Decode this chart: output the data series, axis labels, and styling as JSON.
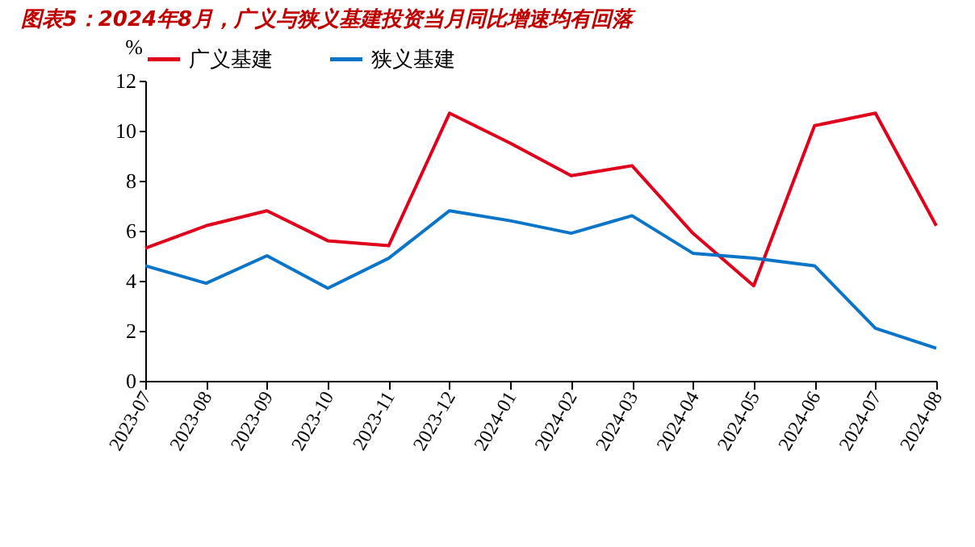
{
  "chart_data": {
    "type": "line",
    "title": "图表5：2024年8月，广义与狭义基建投资当月同比增速均有回落",
    "ylabel": "%",
    "categories": [
      "2023-07",
      "2023-08",
      "2023-09",
      "2023-10",
      "2023-11",
      "2023-12",
      "2024-01",
      "2024-02",
      "2024-03",
      "2024-04",
      "2024-05",
      "2024-06",
      "2024-07",
      "2024-08"
    ],
    "series": [
      {
        "name": "广义基建",
        "color": "#e0001b",
        "values": [
          5.3,
          6.2,
          6.8,
          5.6,
          5.4,
          10.7,
          9.5,
          8.2,
          8.6,
          5.9,
          3.8,
          10.2,
          10.7,
          6.2
        ]
      },
      {
        "name": "狭义基建",
        "color": "#0a75c8",
        "values": [
          4.6,
          3.9,
          5.0,
          3.7,
          4.9,
          6.8,
          6.4,
          5.9,
          6.6,
          5.1,
          4.9,
          4.6,
          2.1,
          1.3
        ]
      }
    ],
    "ylim": [
      0,
      12
    ],
    "yticks": [
      0,
      2,
      4,
      6,
      8,
      10,
      12
    ],
    "grid": false,
    "legend": "top",
    "marker": "none",
    "line_style": "solid"
  }
}
